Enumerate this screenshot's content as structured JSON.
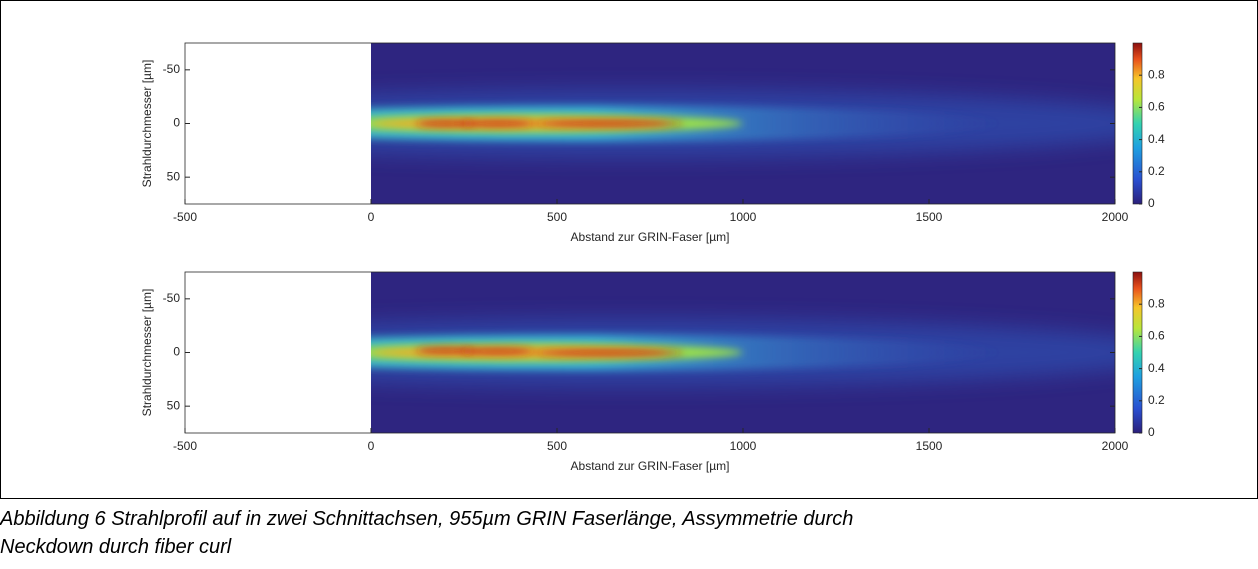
{
  "chart_data": [
    {
      "type": "heatmap",
      "xlabel": "Abstand zur GRIN-Faser [µm]",
      "ylabel": "Strahldurchmesser [µm]",
      "extent": [
        0,
        2000
      ],
      "xlim": [
        -500,
        2000
      ],
      "xticks": [
        -500,
        0,
        500,
        1000,
        1500,
        2000
      ],
      "ylim": [
        -75,
        75
      ],
      "yticks": [
        -50,
        0,
        50
      ],
      "y_reversed": true,
      "clim": [
        0,
        1
      ],
      "cticks": [
        0,
        0.2,
        0.4,
        0.6,
        0.8
      ],
      "colormap": "jet"
    },
    {
      "type": "heatmap",
      "xlabel": "Abstand zur GRIN-Faser [µm]",
      "ylabel": "Strahldurchmesser [µm]",
      "extent": [
        0,
        2000
      ],
      "xlim": [
        -500,
        2000
      ],
      "xticks": [
        -500,
        0,
        500,
        1000,
        1500,
        2000
      ],
      "ylim": [
        -75,
        75
      ],
      "yticks": [
        -50,
        0,
        50
      ],
      "y_reversed": true,
      "clim": [
        0,
        1
      ],
      "cticks": [
        0,
        0.2,
        0.4,
        0.6,
        0.8
      ],
      "colormap": "jet"
    }
  ],
  "caption": [
    "Abbildung 6 Strahlprofil auf in zwei Schnittachsen, 955µm GRIN Faserlänge, Assymmetrie durch",
    "Neckdown durch fiber curl"
  ]
}
